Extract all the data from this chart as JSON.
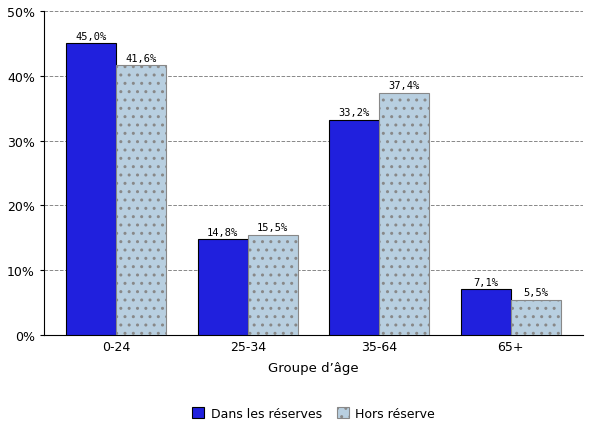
{
  "categories": [
    "0-24",
    "25-34",
    "35-64",
    "65+"
  ],
  "series1_label": "Dans les réserves",
  "series2_label": "Hors réserve",
  "series1_values": [
    45.0,
    14.8,
    33.2,
    7.1
  ],
  "series2_values": [
    41.6,
    15.5,
    37.4,
    5.5
  ],
  "series1_color": "#2020dd",
  "series2_color": "#b8cfe0",
  "series2_hatch": "..",
  "xlabel": "Groupe d’âge",
  "ylim": [
    0,
    50
  ],
  "yticks": [
    0,
    10,
    20,
    30,
    40,
    50
  ],
  "ytick_labels": [
    "0%",
    "10%",
    "20%",
    "30%",
    "40%",
    "50%"
  ],
  "bar_width": 0.38,
  "background_color": "#ffffff",
  "grid_color": "#888888",
  "annotation_fontsize": 7.5,
  "axis_fontsize": 9,
  "legend_fontsize": 9
}
